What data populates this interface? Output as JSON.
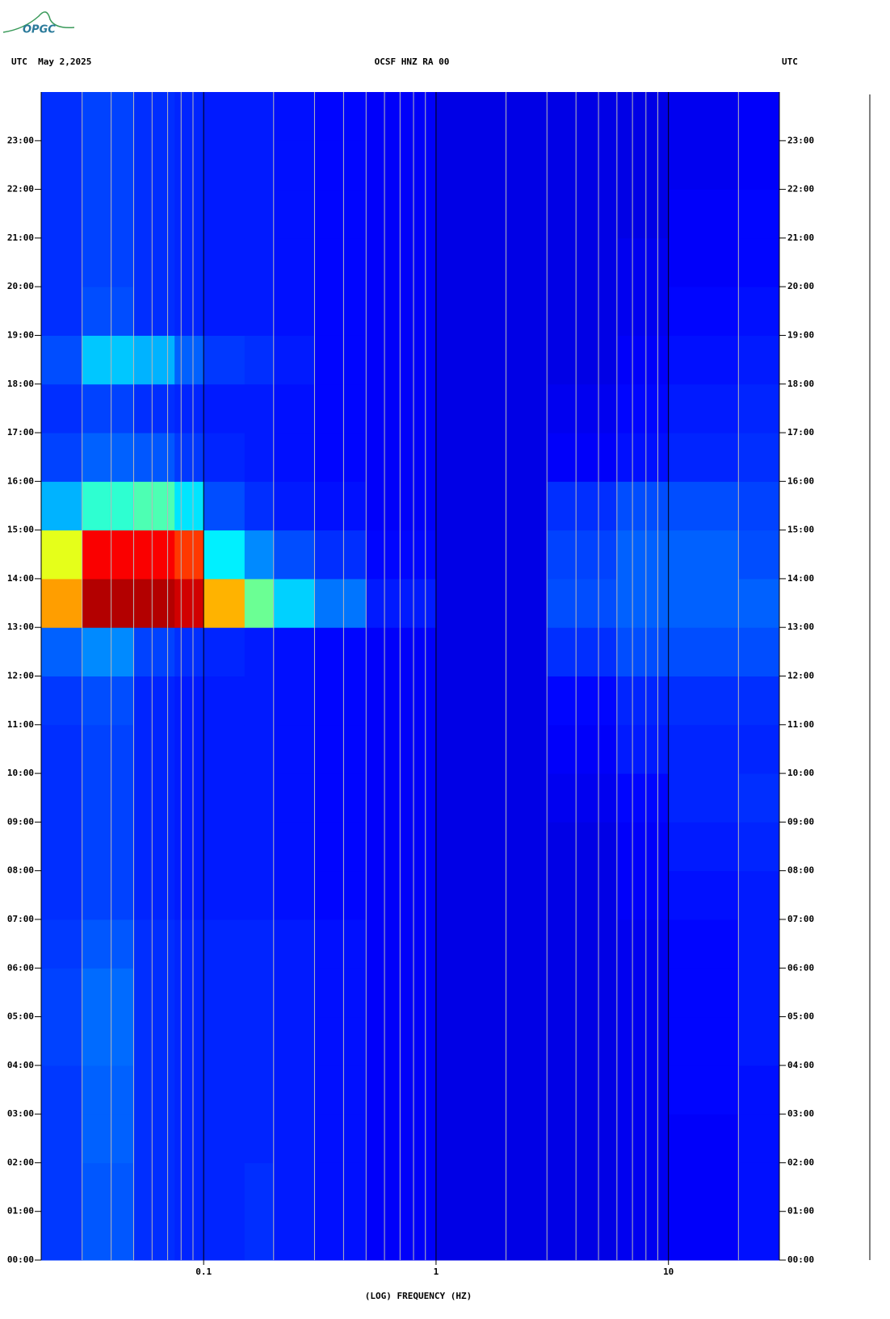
{
  "chart_data": {
    "type": "heatmap",
    "logo": "OPGC",
    "title_left": "UTC  May 2,2025",
    "title": "OCSF HNZ RA 00",
    "title_right": "UTC",
    "xlabel": "(LOG) FREQUENCY (HZ)",
    "xscale": "log",
    "xlim": [
      0.02,
      30
    ],
    "xticks": [
      {
        "value": 0.1,
        "label": "0.1"
      },
      1,
      10
    ],
    "minor_xticks": [
      0.03,
      0.04,
      0.05,
      0.06,
      0.07,
      0.08,
      0.09,
      0.2,
      0.3,
      0.4,
      0.5,
      0.6,
      0.7,
      0.8,
      0.9,
      2,
      3,
      4,
      5,
      6,
      7,
      8,
      9,
      20
    ],
    "ylim": [
      0,
      24
    ],
    "yticks": [
      {
        "value": 0,
        "label": "00:00"
      },
      {
        "value": 1,
        "label": "01:00"
      },
      {
        "value": 2,
        "label": "02:00"
      },
      {
        "value": 3,
        "label": "03:00"
      },
      {
        "value": 4,
        "label": "04:00"
      },
      {
        "value": 5,
        "label": "05:00"
      },
      {
        "value": 6,
        "label": "06:00"
      },
      {
        "value": 7,
        "label": "07:00"
      },
      {
        "value": 8,
        "label": "08:00"
      },
      {
        "value": 9,
        "label": "09:00"
      },
      {
        "value": 10,
        "label": "10:00"
      },
      {
        "value": 11,
        "label": "11:00"
      },
      {
        "value": 12,
        "label": "12:00"
      },
      {
        "value": 13,
        "label": "13:00"
      },
      {
        "value": 14,
        "label": "14:00"
      },
      {
        "value": 15,
        "label": "15:00"
      },
      {
        "value": 16,
        "label": "16:00"
      },
      {
        "value": 17,
        "label": "17:00"
      },
      {
        "value": 18,
        "label": "18:00"
      },
      {
        "value": 19,
        "label": "19:00"
      },
      {
        "value": 20,
        "label": "20:00"
      },
      {
        "value": 21,
        "label": "21:00"
      },
      {
        "value": 22,
        "label": "22:00"
      },
      {
        "value": 23,
        "label": "23:00"
      }
    ],
    "colormap": "jet",
    "zlim": [
      0,
      1
    ],
    "x_bins": [
      0.02,
      0.03,
      0.05,
      0.075,
      0.1,
      0.15,
      0.2,
      0.3,
      0.5,
      1,
      3,
      6,
      10,
      20,
      30
    ],
    "y_bins": [
      0,
      1,
      2,
      3,
      4,
      5,
      6,
      7,
      8,
      9,
      10,
      11,
      12,
      13,
      14,
      15,
      16,
      17,
      18,
      19,
      20,
      21,
      22,
      23,
      24
    ],
    "z": [
      [
        0.18,
        0.21,
        0.17,
        0.16,
        0.16,
        0.17,
        0.15,
        0.14,
        0.12,
        0.1,
        0.1,
        0.11,
        0.12,
        0.14
      ],
      [
        0.18,
        0.21,
        0.17,
        0.16,
        0.16,
        0.17,
        0.15,
        0.14,
        0.12,
        0.1,
        0.1,
        0.11,
        0.12,
        0.14
      ],
      [
        0.18,
        0.22,
        0.17,
        0.16,
        0.16,
        0.16,
        0.15,
        0.14,
        0.12,
        0.1,
        0.1,
        0.11,
        0.12,
        0.14
      ],
      [
        0.18,
        0.22,
        0.17,
        0.16,
        0.16,
        0.16,
        0.15,
        0.14,
        0.12,
        0.1,
        0.1,
        0.11,
        0.13,
        0.14
      ],
      [
        0.19,
        0.23,
        0.17,
        0.16,
        0.16,
        0.16,
        0.15,
        0.14,
        0.12,
        0.1,
        0.1,
        0.11,
        0.13,
        0.15
      ],
      [
        0.19,
        0.23,
        0.17,
        0.16,
        0.16,
        0.16,
        0.15,
        0.14,
        0.12,
        0.1,
        0.1,
        0.11,
        0.13,
        0.15
      ],
      [
        0.18,
        0.21,
        0.17,
        0.16,
        0.16,
        0.16,
        0.15,
        0.14,
        0.12,
        0.1,
        0.1,
        0.11,
        0.13,
        0.15
      ],
      [
        0.17,
        0.19,
        0.16,
        0.15,
        0.15,
        0.15,
        0.14,
        0.13,
        0.12,
        0.1,
        0.1,
        0.12,
        0.14,
        0.15
      ],
      [
        0.17,
        0.19,
        0.16,
        0.15,
        0.15,
        0.15,
        0.14,
        0.13,
        0.12,
        0.1,
        0.1,
        0.12,
        0.15,
        0.16
      ],
      [
        0.17,
        0.19,
        0.16,
        0.15,
        0.15,
        0.15,
        0.14,
        0.13,
        0.12,
        0.1,
        0.11,
        0.13,
        0.16,
        0.17
      ],
      [
        0.17,
        0.19,
        0.16,
        0.15,
        0.15,
        0.15,
        0.14,
        0.13,
        0.12,
        0.1,
        0.12,
        0.15,
        0.16,
        0.16
      ],
      [
        0.18,
        0.2,
        0.16,
        0.15,
        0.15,
        0.15,
        0.14,
        0.13,
        0.12,
        0.1,
        0.13,
        0.16,
        0.17,
        0.17
      ],
      [
        0.22,
        0.26,
        0.19,
        0.17,
        0.16,
        0.15,
        0.14,
        0.13,
        0.12,
        0.1,
        0.17,
        0.2,
        0.2,
        0.2
      ],
      [
        0.72,
        0.95,
        0.95,
        0.92,
        0.7,
        0.48,
        0.33,
        0.24,
        0.15,
        0.1,
        0.2,
        0.22,
        0.22,
        0.22
      ],
      [
        0.6,
        0.88,
        0.88,
        0.82,
        0.36,
        0.26,
        0.2,
        0.17,
        0.13,
        0.1,
        0.19,
        0.22,
        0.22,
        0.2
      ],
      [
        0.3,
        0.42,
        0.45,
        0.35,
        0.2,
        0.17,
        0.15,
        0.14,
        0.12,
        0.1,
        0.17,
        0.2,
        0.2,
        0.19
      ],
      [
        0.19,
        0.22,
        0.21,
        0.18,
        0.16,
        0.15,
        0.14,
        0.13,
        0.12,
        0.1,
        0.12,
        0.14,
        0.16,
        0.17
      ],
      [
        0.17,
        0.19,
        0.17,
        0.16,
        0.15,
        0.15,
        0.14,
        0.13,
        0.12,
        0.1,
        0.11,
        0.13,
        0.15,
        0.16
      ],
      [
        0.2,
        0.32,
        0.3,
        0.22,
        0.18,
        0.17,
        0.15,
        0.13,
        0.12,
        0.1,
        0.1,
        0.12,
        0.14,
        0.15
      ],
      [
        0.17,
        0.2,
        0.17,
        0.16,
        0.15,
        0.15,
        0.14,
        0.13,
        0.12,
        0.1,
        0.1,
        0.11,
        0.13,
        0.14
      ],
      [
        0.17,
        0.19,
        0.17,
        0.16,
        0.15,
        0.15,
        0.14,
        0.13,
        0.12,
        0.1,
        0.1,
        0.11,
        0.12,
        0.13
      ],
      [
        0.17,
        0.19,
        0.17,
        0.16,
        0.15,
        0.15,
        0.14,
        0.13,
        0.12,
        0.1,
        0.1,
        0.1,
        0.12,
        0.13
      ],
      [
        0.17,
        0.19,
        0.17,
        0.16,
        0.15,
        0.15,
        0.14,
        0.13,
        0.12,
        0.1,
        0.1,
        0.1,
        0.11,
        0.12
      ],
      [
        0.17,
        0.19,
        0.17,
        0.16,
        0.15,
        0.15,
        0.14,
        0.13,
        0.12,
        0.1,
        0.1,
        0.1,
        0.11,
        0.12
      ]
    ]
  }
}
